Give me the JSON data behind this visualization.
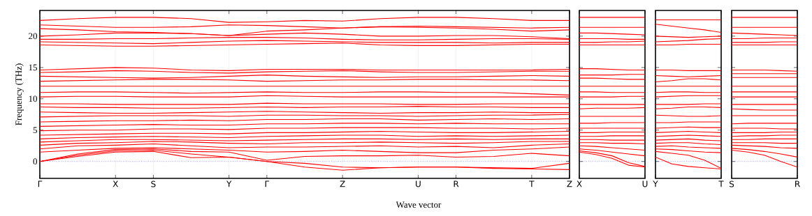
{
  "chart_data": [
    {
      "type": "line",
      "ylabel": "Frequency (THz)",
      "xlabel": "Wave vector",
      "grid": "x",
      "line_style": "solid",
      "ylim": [
        -2.7,
        24.1
      ],
      "yticks": [
        0,
        5,
        10,
        15,
        20
      ],
      "categories": [
        "Γ",
        null,
        "X",
        "S",
        null,
        "Y",
        "Γ",
        null,
        "Z",
        null,
        "U",
        "R",
        null,
        "T",
        "Z"
      ],
      "ref_lines": [
        {
          "axis": "y",
          "value": 0,
          "color": "#0000ff",
          "line_style": "dotted"
        }
      ],
      "series": [
        {
          "color": "#ff0000",
          "values": [
            0,
            0.8,
            1.5,
            1.6,
            0.6,
            0.7,
            0,
            -0.9,
            -1.4,
            -1.0,
            -0.9,
            -0.9,
            -1.1,
            -1.2,
            -1.3
          ]
        },
        {
          "color": "#ff0000",
          "values": [
            0,
            1.0,
            1.7,
            1.8,
            1.2,
            0.7,
            0,
            -0.3,
            -0.9,
            -1.0,
            -0.9,
            -0.9,
            -1.0,
            -1.1,
            -0.3
          ]
        },
        {
          "color": "#ff0000",
          "values": [
            0,
            1.2,
            1.9,
            2.0,
            1.6,
            1.5,
            0.2,
            0.8,
            0.9,
            0.9,
            1.0,
            0.7,
            0.8,
            1.3,
            0.9
          ]
        },
        {
          "color": "#ff0000",
          "values": [
            1.5,
            1.8,
            2.1,
            2.2,
            2.0,
            1.8,
            1.5,
            1.6,
            1.8,
            1.6,
            1.4,
            1.4,
            1.8,
            2.0,
            2.3
          ]
        },
        {
          "color": "#ff0000",
          "values": [
            2.0,
            2.5,
            2.6,
            2.8,
            2.5,
            2.2,
            2.3,
            2.3,
            2.4,
            2.5,
            2.3,
            2.4,
            2.2,
            2.6,
            2.8
          ]
        },
        {
          "color": "#ff0000",
          "values": [
            2.6,
            2.9,
            3.0,
            3.2,
            3.1,
            2.9,
            2.8,
            3.0,
            3.0,
            3.1,
            3.0,
            2.9,
            3.0,
            3.2,
            3.2
          ]
        },
        {
          "color": "#ff0000",
          "values": [
            3.1,
            3.3,
            3.5,
            3.5,
            3.4,
            3.3,
            3.4,
            3.5,
            3.6,
            3.6,
            3.5,
            3.6,
            3.5,
            3.6,
            3.6
          ]
        },
        {
          "color": "#ff0000",
          "values": [
            3.6,
            3.8,
            3.9,
            4.0,
            3.9,
            3.8,
            4.0,
            4.1,
            4.2,
            4.2,
            4.0,
            4.1,
            4.0,
            4.1,
            4.2
          ]
        },
        {
          "color": "#ff0000",
          "values": [
            4.2,
            4.3,
            4.4,
            4.5,
            4.5,
            4.4,
            4.6,
            4.6,
            4.7,
            4.8,
            4.7,
            4.6,
            4.6,
            4.7,
            4.8
          ]
        },
        {
          "color": "#ff0000",
          "values": [
            4.9,
            5.0,
            5.0,
            5.2,
            5.2,
            5.1,
            5.3,
            5.3,
            5.4,
            5.4,
            5.4,
            5.3,
            5.3,
            5.2,
            5.3
          ]
        },
        {
          "color": "#ff0000",
          "values": [
            5.6,
            5.7,
            5.8,
            5.9,
            5.8,
            5.8,
            6.0,
            6.0,
            6.1,
            6.1,
            6.0,
            6.1,
            6.0,
            6.0,
            6.0
          ]
        },
        {
          "color": "#ff0000",
          "values": [
            6.3,
            6.4,
            6.5,
            6.5,
            6.6,
            6.5,
            6.7,
            6.7,
            6.8,
            6.8,
            6.6,
            6.7,
            6.8,
            6.7,
            6.8
          ]
        },
        {
          "color": "#ff0000",
          "values": [
            7.1,
            7.2,
            7.3,
            7.3,
            7.3,
            7.2,
            7.4,
            7.4,
            7.3,
            7.3,
            7.2,
            7.3,
            7.4,
            7.4,
            7.5
          ]
        },
        {
          "color": "#ff0000",
          "values": [
            7.9,
            7.8,
            7.7,
            7.7,
            7.8,
            7.9,
            8.0,
            7.9,
            7.8,
            7.7,
            7.8,
            7.8,
            7.9,
            7.8,
            7.8
          ]
        },
        {
          "color": "#ff0000",
          "values": [
            8.7,
            8.6,
            8.6,
            8.5,
            8.5,
            8.6,
            8.7,
            8.6,
            8.7,
            8.7,
            8.8,
            8.7,
            8.7,
            8.6,
            8.6
          ]
        },
        {
          "color": "#ff0000",
          "values": [
            9.2,
            9.2,
            9.1,
            9.1,
            9.1,
            9.1,
            9.3,
            9.2,
            9.2,
            9.2,
            9.1,
            9.1,
            9.2,
            9.2,
            9.2
          ]
        },
        {
          "color": "#ff0000",
          "values": [
            10.3,
            10.4,
            10.4,
            10.3,
            10.3,
            10.3,
            10.5,
            10.4,
            10.3,
            10.3,
            10.3,
            10.3,
            10.3,
            10.3,
            10.3
          ]
        },
        {
          "color": "#ff0000",
          "values": [
            11.0,
            11.1,
            11.1,
            11.0,
            10.9,
            11.0,
            11.1,
            11.0,
            11.0,
            11.1,
            11.1,
            11.0,
            11.0,
            10.8,
            10.6
          ]
        },
        {
          "color": "#ff0000",
          "values": [
            12.0,
            12.0,
            12.0,
            12.0,
            12.0,
            12.0,
            12.0,
            12.0,
            12.0,
            12.0,
            12.0,
            12.0,
            12.0,
            12.0,
            12.0
          ]
        },
        {
          "color": "#ff0000",
          "values": [
            12.8,
            12.9,
            13.0,
            13.1,
            13.1,
            13.0,
            12.8,
            12.9,
            13.0,
            13.0,
            13.1,
            13.1,
            13.0,
            13.0,
            12.9
          ]
        },
        {
          "color": "#ff0000",
          "values": [
            13.6,
            13.5,
            13.4,
            13.3,
            13.4,
            13.6,
            13.8,
            13.6,
            13.5,
            13.4,
            13.5,
            13.5,
            13.6,
            13.7,
            13.6
          ]
        },
        {
          "color": "#ff0000",
          "values": [
            14.2,
            14.3,
            14.5,
            14.4,
            14.2,
            14.1,
            14.3,
            14.4,
            14.5,
            14.3,
            14.2,
            14.2,
            14.3,
            14.4,
            14.4
          ]
        },
        {
          "color": "#ff0000",
          "values": [
            14.6,
            14.8,
            15.0,
            14.9,
            14.6,
            14.5,
            14.7,
            14.7,
            14.7,
            14.6,
            14.6,
            14.6,
            14.6,
            14.6,
            14.7
          ]
        },
        {
          "color": "#ff0000",
          "values": [
            18.6,
            18.5,
            18.4,
            18.4,
            18.5,
            18.6,
            18.7,
            18.8,
            18.9,
            18.6,
            18.5,
            18.5,
            18.6,
            18.7,
            18.7
          ]
        },
        {
          "color": "#ff0000",
          "values": [
            19.1,
            19.0,
            18.9,
            18.8,
            19.0,
            19.2,
            19.3,
            19.2,
            19.1,
            19.0,
            19.0,
            19.0,
            18.9,
            19.0,
            19.0
          ]
        },
        {
          "color": "#ff0000",
          "values": [
            19.5,
            19.5,
            19.6,
            19.6,
            19.7,
            19.8,
            19.8,
            19.7,
            19.5,
            19.4,
            19.4,
            19.5,
            19.6,
            19.6,
            19.5
          ]
        },
        {
          "color": "#ff0000",
          "values": [
            20.0,
            20.2,
            20.5,
            20.5,
            20.4,
            20.1,
            20.3,
            20.5,
            20.3,
            20.0,
            20.0,
            20.1,
            20.1,
            19.9,
            19.6
          ]
        },
        {
          "color": "#ff0000",
          "values": [
            21.2,
            21.0,
            20.7,
            20.6,
            20.4,
            20.1,
            20.8,
            21.0,
            21.3,
            21.5,
            21.4,
            21.3,
            21.1,
            20.8,
            21.0
          ]
        },
        {
          "color": "#ff0000",
          "values": [
            21.8,
            21.6,
            21.4,
            21.4,
            21.5,
            21.8,
            21.7,
            21.5,
            21.3,
            21.5,
            21.6,
            21.5,
            21.4,
            21.3,
            21.4
          ]
        },
        {
          "color": "#ff0000",
          "values": [
            22.5,
            22.8,
            23.0,
            23.0,
            22.8,
            22.2,
            22.3,
            22.5,
            22.4,
            22.8,
            23.0,
            23.0,
            22.8,
            22.5,
            22.5
          ]
        }
      ]
    },
    {
      "type": "line",
      "tick_labels": "x",
      "line_style": "solid",
      "ylim": [
        -2.7,
        24.1
      ],
      "yticks": [
        0,
        5,
        10,
        15,
        20
      ],
      "categories": [
        "X",
        null,
        null,
        null,
        "U"
      ],
      "ref_lines": [
        {
          "axis": "y",
          "value": 0,
          "color": "#0000ff",
          "line_style": "dotted"
        }
      ],
      "series": [
        {
          "color": "#ff0000",
          "values": [
            1.5,
            1.1,
            0.5,
            -0.6,
            -0.9
          ]
        },
        {
          "color": "#ff0000",
          "values": [
            1.7,
            1.4,
            0.9,
            -0.2,
            -0.8
          ]
        },
        {
          "color": "#ff0000",
          "values": [
            2.0,
            1.8,
            1.5,
            1.2,
            0.9
          ]
        },
        {
          "color": "#ff0000",
          "values": [
            2.5,
            2.4,
            2.2,
            2.0,
            1.8
          ]
        },
        {
          "color": "#ff0000",
          "values": [
            3.0,
            3.0,
            2.9,
            2.9,
            2.8
          ]
        },
        {
          "color": "#ff0000",
          "values": [
            3.5,
            3.5,
            3.4,
            3.4,
            3.4
          ]
        },
        {
          "color": "#ff0000",
          "values": [
            4.0,
            4.0,
            4.1,
            4.1,
            4.1
          ]
        },
        {
          "color": "#ff0000",
          "values": [
            4.6,
            4.6,
            4.7,
            4.7,
            4.7
          ]
        },
        {
          "color": "#ff0000",
          "values": [
            5.3,
            5.3,
            5.3,
            5.3,
            5.3
          ]
        },
        {
          "color": "#ff0000",
          "values": [
            6.1,
            6.1,
            6.2,
            6.2,
            6.2
          ]
        },
        {
          "color": "#ff0000",
          "values": [
            7.2,
            7.2,
            7.2,
            7.2,
            7.2
          ]
        },
        {
          "color": "#ff0000",
          "values": [
            8.4,
            8.5,
            8.5,
            8.5,
            8.6
          ]
        },
        {
          "color": "#ff0000",
          "values": [
            9.1,
            9.1,
            9.1,
            9.1,
            9.1
          ]
        },
        {
          "color": "#ff0000",
          "values": [
            10.3,
            10.3,
            10.3,
            10.4,
            10.4
          ]
        },
        {
          "color": "#ff0000",
          "values": [
            11.1,
            11.1,
            11.0,
            11.0,
            11.0
          ]
        },
        {
          "color": "#ff0000",
          "values": [
            12.0,
            12.0,
            12.0,
            12.0,
            12.0
          ]
        },
        {
          "color": "#ff0000",
          "values": [
            13.3,
            13.3,
            13.2,
            13.1,
            13.1
          ]
        },
        {
          "color": "#ff0000",
          "values": [
            13.8,
            13.8,
            13.8,
            13.9,
            13.9
          ]
        },
        {
          "color": "#ff0000",
          "values": [
            14.8,
            14.8,
            14.7,
            14.6,
            14.6
          ]
        },
        {
          "color": "#ff0000",
          "values": [
            18.6,
            18.6,
            18.6,
            18.6,
            18.6
          ]
        },
        {
          "color": "#ff0000",
          "values": [
            19.0,
            19.0,
            19.1,
            19.1,
            19.2
          ]
        },
        {
          "color": "#ff0000",
          "values": [
            19.6,
            19.6,
            19.6,
            19.5,
            19.5
          ]
        },
        {
          "color": "#ff0000",
          "values": [
            20.5,
            20.5,
            20.4,
            20.3,
            20.2
          ]
        },
        {
          "color": "#ff0000",
          "values": [
            21.4,
            21.4,
            21.4,
            21.4,
            21.4
          ]
        },
        {
          "color": "#ff0000",
          "values": [
            23.0,
            23.0,
            23.0,
            23.0,
            23.0
          ]
        }
      ]
    },
    {
      "type": "line",
      "tick_labels": "x",
      "line_style": "solid",
      "ylim": [
        -2.7,
        24.1
      ],
      "yticks": [
        0,
        5,
        10,
        15,
        20
      ],
      "categories": [
        "Y",
        null,
        null,
        null,
        "T"
      ],
      "ref_lines": [
        {
          "axis": "y",
          "value": 0,
          "color": "#0000ff",
          "line_style": "dotted"
        }
      ],
      "series": [
        {
          "color": "#ff0000",
          "values": [
            0.7,
            -0.4,
            -0.8,
            -1.0,
            -1.2
          ]
        },
        {
          "color": "#ff0000",
          "values": [
            1.6,
            1.3,
            1.0,
            0.2,
            -1.1
          ]
        },
        {
          "color": "#ff0000",
          "values": [
            2.0,
            1.9,
            1.7,
            1.5,
            1.4
          ]
        },
        {
          "color": "#ff0000",
          "values": [
            2.4,
            2.5,
            2.3,
            2.2,
            2.1
          ]
        },
        {
          "color": "#ff0000",
          "values": [
            2.9,
            3.0,
            3.0,
            2.8,
            2.7
          ]
        },
        {
          "color": "#ff0000",
          "values": [
            3.4,
            3.5,
            3.6,
            3.4,
            3.3
          ]
        },
        {
          "color": "#ff0000",
          "values": [
            4.0,
            4.1,
            4.2,
            4.1,
            4.0
          ]
        },
        {
          "color": "#ff0000",
          "values": [
            4.6,
            4.7,
            4.8,
            4.7,
            4.6
          ]
        },
        {
          "color": "#ff0000",
          "values": [
            5.3,
            5.4,
            5.5,
            5.4,
            5.4
          ]
        },
        {
          "color": "#ff0000",
          "values": [
            6.2,
            6.2,
            6.3,
            6.3,
            6.3
          ]
        },
        {
          "color": "#ff0000",
          "values": [
            7.4,
            7.3,
            7.2,
            7.2,
            7.3
          ]
        },
        {
          "color": "#ff0000",
          "values": [
            8.4,
            8.5,
            8.7,
            8.7,
            8.6
          ]
        },
        {
          "color": "#ff0000",
          "values": [
            9.1,
            9.1,
            9.1,
            9.2,
            9.2
          ]
        },
        {
          "color": "#ff0000",
          "values": [
            10.3,
            10.4,
            10.5,
            10.5,
            10.5
          ]
        },
        {
          "color": "#ff0000",
          "values": [
            11.0,
            11.1,
            11.1,
            11.0,
            11.0
          ]
        },
        {
          "color": "#ff0000",
          "values": [
            12.0,
            12.0,
            12.0,
            12.0,
            12.0
          ]
        },
        {
          "color": "#ff0000",
          "values": [
            12.7,
            12.9,
            13.2,
            13.2,
            13.0
          ]
        },
        {
          "color": "#ff0000",
          "values": [
            13.7,
            13.6,
            13.5,
            13.6,
            13.7
          ]
        },
        {
          "color": "#ff0000",
          "values": [
            14.6,
            14.6,
            14.5,
            14.5,
            14.5
          ]
        },
        {
          "color": "#ff0000",
          "values": [
            18.6,
            18.6,
            18.7,
            18.7,
            18.7
          ]
        },
        {
          "color": "#ff0000",
          "values": [
            19.1,
            19.2,
            19.3,
            19.5,
            19.6
          ]
        },
        {
          "color": "#ff0000",
          "values": [
            20.0,
            19.9,
            19.8,
            19.9,
            20.0
          ]
        },
        {
          "color": "#ff0000",
          "values": [
            21.9,
            21.6,
            21.3,
            21.0,
            20.6
          ]
        },
        {
          "color": "#ff0000",
          "values": [
            22.6,
            22.6,
            22.6,
            22.6,
            22.6
          ]
        }
      ]
    },
    {
      "type": "line",
      "tick_labels": "x",
      "line_style": "solid",
      "ylim": [
        -2.7,
        24.1
      ],
      "yticks": [
        0,
        5,
        10,
        15,
        20
      ],
      "categories": [
        "S",
        null,
        null,
        null,
        "R"
      ],
      "ref_lines": [
        {
          "axis": "y",
          "value": 0,
          "color": "#0000ff",
          "line_style": "dotted"
        }
      ],
      "series": [
        {
          "color": "#ff0000",
          "values": [
            1.8,
            1.5,
            1.0,
            0.0,
            -0.9
          ]
        },
        {
          "color": "#ff0000",
          "values": [
            2.1,
            1.9,
            1.6,
            1.2,
            0.7
          ]
        },
        {
          "color": "#ff0000",
          "values": [
            2.6,
            2.5,
            2.4,
            2.2,
            2.1
          ]
        },
        {
          "color": "#ff0000",
          "values": [
            3.0,
            3.0,
            3.0,
            2.9,
            2.9
          ]
        },
        {
          "color": "#ff0000",
          "values": [
            3.5,
            3.5,
            3.6,
            3.6,
            3.6
          ]
        },
        {
          "color": "#ff0000",
          "values": [
            4.0,
            4.1,
            4.1,
            4.2,
            4.2
          ]
        },
        {
          "color": "#ff0000",
          "values": [
            4.6,
            4.6,
            4.6,
            4.7,
            4.7
          ]
        },
        {
          "color": "#ff0000",
          "values": [
            5.3,
            5.3,
            5.3,
            5.2,
            5.2
          ]
        },
        {
          "color": "#ff0000",
          "values": [
            6.0,
            6.1,
            6.1,
            6.1,
            6.1
          ]
        },
        {
          "color": "#ff0000",
          "values": [
            7.3,
            7.3,
            7.3,
            7.3,
            7.3
          ]
        },
        {
          "color": "#ff0000",
          "values": [
            8.4,
            8.3,
            8.2,
            8.2,
            8.2
          ]
        },
        {
          "color": "#ff0000",
          "values": [
            9.1,
            9.1,
            9.1,
            9.1,
            9.1
          ]
        },
        {
          "color": "#ff0000",
          "values": [
            10.3,
            10.3,
            10.3,
            10.3,
            10.3
          ]
        },
        {
          "color": "#ff0000",
          "values": [
            11.1,
            11.1,
            11.1,
            11.1,
            11.1
          ]
        },
        {
          "color": "#ff0000",
          "values": [
            12.0,
            12.0,
            12.0,
            12.0,
            12.0
          ]
        },
        {
          "color": "#ff0000",
          "values": [
            13.4,
            13.4,
            13.4,
            13.4,
            13.4
          ]
        },
        {
          "color": "#ff0000",
          "values": [
            14.0,
            14.0,
            14.0,
            14.0,
            14.0
          ]
        },
        {
          "color": "#ff0000",
          "values": [
            14.6,
            14.6,
            14.6,
            14.5,
            14.4
          ]
        },
        {
          "color": "#ff0000",
          "values": [
            18.6,
            18.6,
            18.6,
            18.6,
            18.6
          ]
        },
        {
          "color": "#ff0000",
          "values": [
            19.0,
            19.0,
            19.0,
            19.1,
            19.1
          ]
        },
        {
          "color": "#ff0000",
          "values": [
            19.6,
            19.6,
            19.7,
            19.7,
            19.7
          ]
        },
        {
          "color": "#ff0000",
          "values": [
            20.5,
            20.4,
            20.3,
            20.2,
            20.1
          ]
        },
        {
          "color": "#ff0000",
          "values": [
            21.4,
            21.4,
            21.4,
            21.4,
            21.4
          ]
        },
        {
          "color": "#ff0000",
          "values": [
            23.0,
            23.0,
            23.0,
            23.0,
            23.0
          ]
        }
      ]
    }
  ]
}
